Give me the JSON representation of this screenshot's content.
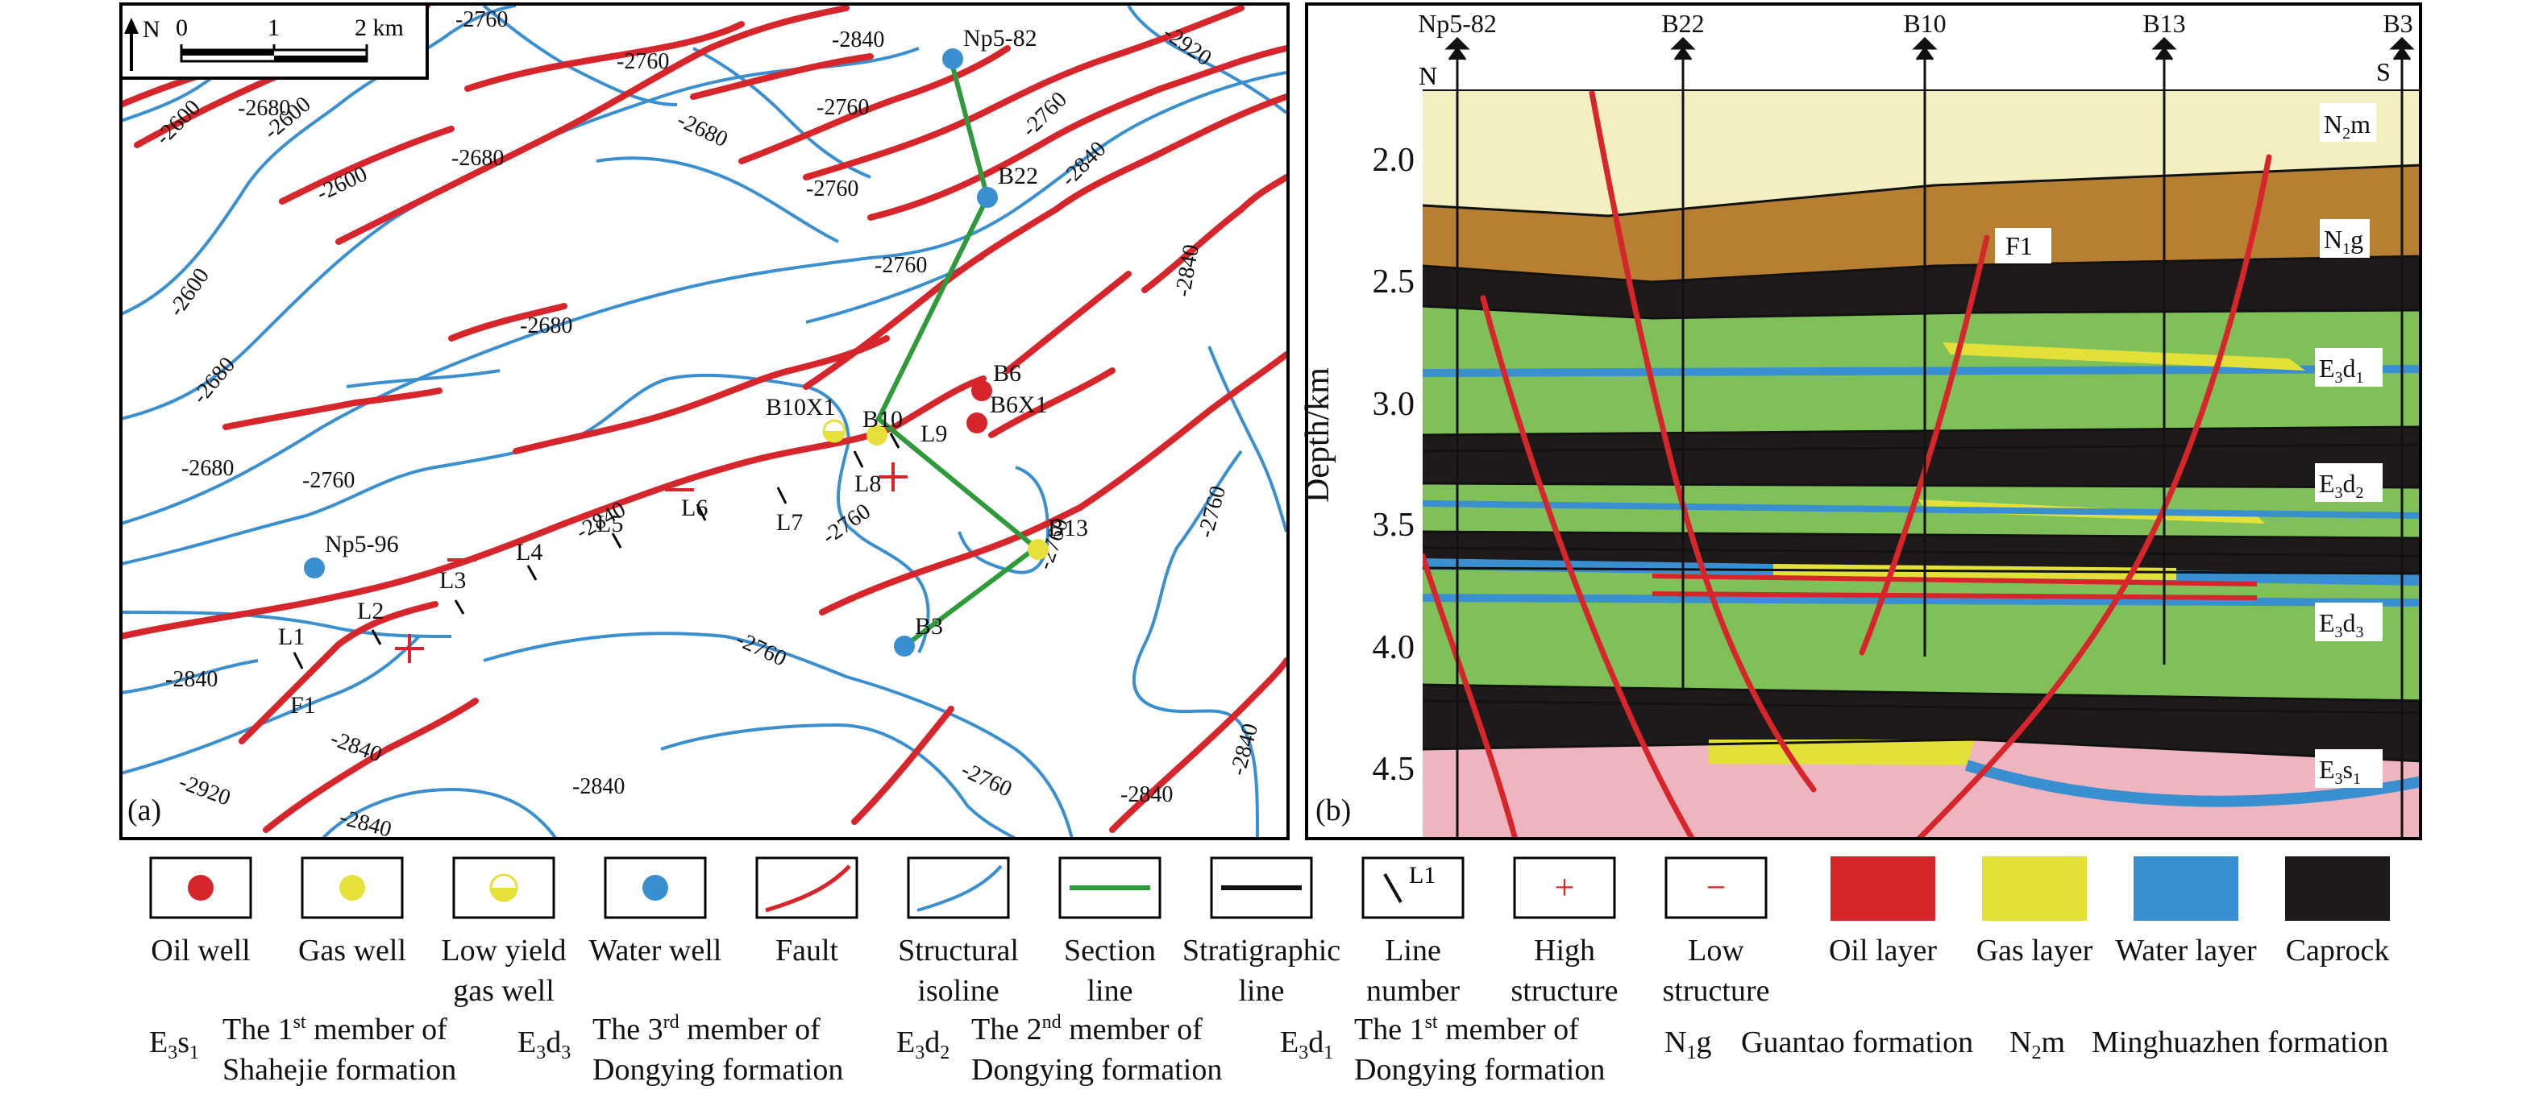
{
  "panel_a": {
    "label": "(a)",
    "north": "N",
    "scale": {
      "labels": [
        "0",
        "1",
        "2 km"
      ]
    },
    "isoline_labels": [
      "-2760",
      "-2840",
      "-2920",
      "-2680",
      "-2680",
      "-2600",
      "-2600",
      "-2600",
      "-2760",
      "-2760",
      "-2760",
      "-2840",
      "-2760",
      "-2760",
      "-2680",
      "-2680",
      "-2840",
      "-2600",
      "-2680",
      "-2760",
      "-2680",
      "-2840",
      "-2760",
      "-2760",
      "-2760",
      "-2840",
      "-2840",
      "-2920",
      "-2840",
      "-2840",
      "-2840",
      "-2760",
      "-2760",
      "-2840"
    ],
    "wells": [
      {
        "name": "Np5-82",
        "type": "water"
      },
      {
        "name": "B22",
        "type": "water"
      },
      {
        "name": "B6",
        "type": "oil"
      },
      {
        "name": "B6X1",
        "type": "oil"
      },
      {
        "name": "B10X1",
        "type": "low_yield_gas"
      },
      {
        "name": "B10",
        "type": "gas"
      },
      {
        "name": "B13",
        "type": "gas"
      },
      {
        "name": "B3",
        "type": "water"
      },
      {
        "name": "Np5-96",
        "type": "water"
      }
    ],
    "line_numbers": [
      "L1",
      "L2",
      "L3",
      "L4",
      "L5",
      "L6",
      "L7",
      "L8",
      "L9"
    ],
    "fault_label": "F1"
  },
  "panel_b": {
    "label": "(b)",
    "wells": [
      "Np5-82",
      "B22",
      "B10",
      "B13",
      "B3"
    ],
    "direction": {
      "left": "N",
      "right": "S"
    },
    "y_axis": {
      "label": "Depth/km",
      "ticks": [
        "2.0",
        "2.5",
        "3.0",
        "3.5",
        "4.0",
        "4.5"
      ],
      "range": [
        1.7,
        4.8
      ]
    },
    "fault_label": "F1",
    "formations": [
      {
        "main": "N",
        "sub": "2",
        "tail": "m"
      },
      {
        "main": "N",
        "sub": "1",
        "tail": "g"
      },
      {
        "main": "E",
        "sub": "3",
        "tail": "d",
        "sub2": "1"
      },
      {
        "main": "E",
        "sub": "3",
        "tail": "d",
        "sub2": "2"
      },
      {
        "main": "E",
        "sub": "3",
        "tail": "d",
        "sub2": "3"
      },
      {
        "main": "E",
        "sub": "3",
        "tail": "s",
        "sub2": "1"
      }
    ]
  },
  "legend": [
    {
      "lines": [
        "Oil well"
      ],
      "icon": "oil-well",
      "color": "#d7262b"
    },
    {
      "lines": [
        "Gas well"
      ],
      "icon": "gas-well",
      "color": "#e6e03a"
    },
    {
      "lines": [
        "Low yield",
        "gas well"
      ],
      "icon": "low-yield-gas-well",
      "color": "#e6e03a"
    },
    {
      "lines": [
        "Water well"
      ],
      "icon": "water-well",
      "color": "#3a8fd0"
    },
    {
      "lines": [
        "Fault"
      ],
      "icon": "fault",
      "color": "#d7262b"
    },
    {
      "lines": [
        "Structural",
        "isoline"
      ],
      "icon": "isoline",
      "color": "#3a8fd0"
    },
    {
      "lines": [
        "Section",
        "line"
      ],
      "icon": "section-line",
      "color": "#2e9a3a"
    },
    {
      "lines": [
        "Stratigraphic",
        "line"
      ],
      "icon": "stratigraphic-line",
      "color": "#111111"
    },
    {
      "lines": [
        "Line",
        "number"
      ],
      "icon": "line-number",
      "glyph": "L1"
    },
    {
      "lines": [
        "High",
        "structure"
      ],
      "icon": "high-structure",
      "glyph": "+"
    },
    {
      "lines": [
        "Low",
        "structure"
      ],
      "icon": "low-structure",
      "glyph": "−"
    },
    {
      "lines": [
        "Oil layer"
      ],
      "icon": "oil-layer",
      "color": "#d7262b"
    },
    {
      "lines": [
        "Gas layer"
      ],
      "icon": "gas-layer",
      "color": "#e3e03a"
    },
    {
      "lines": [
        "Water layer"
      ],
      "icon": "water-layer",
      "color": "#3a8fd0"
    },
    {
      "lines": [
        "Caprock"
      ],
      "icon": "caprock",
      "color": "#1e1a1a"
    }
  ],
  "abbreviations": [
    {
      "main": "E",
      "s1": "3",
      "t": "s",
      "s2": "1",
      "desc": [
        "The 1",
        "st",
        " member of",
        "Shahejie formation"
      ]
    },
    {
      "main": "E",
      "s1": "3",
      "t": "d",
      "s2": "3",
      "desc": [
        "The 3",
        "rd",
        " member of",
        "Dongying formation"
      ]
    },
    {
      "main": "E",
      "s1": "3",
      "t": "d",
      "s2": "2",
      "desc": [
        "The 2",
        "nd",
        " member of",
        "Dongying formation"
      ]
    },
    {
      "main": "E",
      "s1": "3",
      "t": "d",
      "s2": "1",
      "desc": [
        "The 1",
        "st",
        " member of",
        "Dongying formation"
      ]
    },
    {
      "main": "N",
      "s1": "1",
      "t": "g",
      "s2": "",
      "desc": [
        "Guantao formation",
        "",
        "",
        ""
      ]
    },
    {
      "main": "N",
      "s1": "2",
      "t": "m",
      "s2": "",
      "desc": [
        "Minghuazhen formation",
        "",
        "",
        ""
      ]
    }
  ]
}
